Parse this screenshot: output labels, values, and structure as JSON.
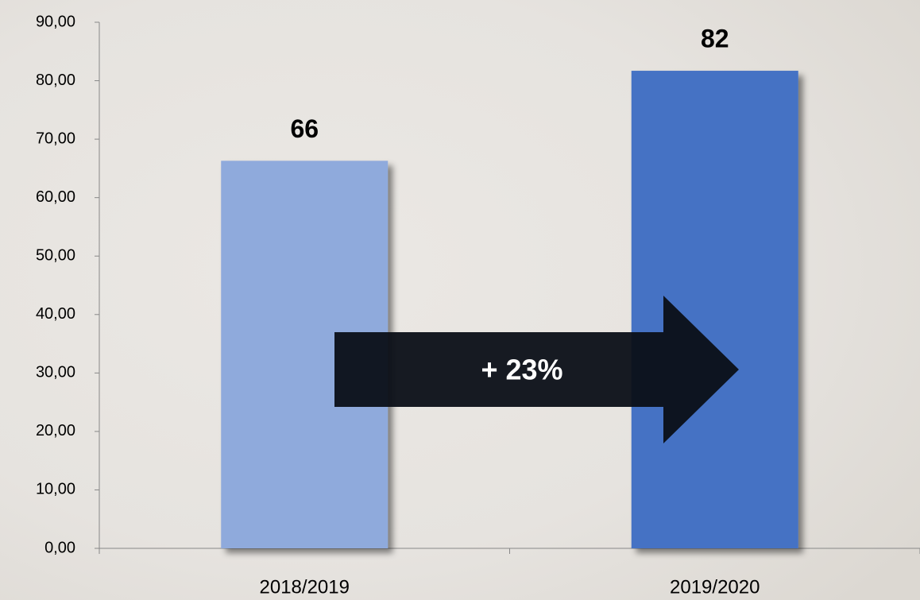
{
  "chart_data": {
    "type": "bar",
    "categories": [
      "2018/2019",
      "2019/2020"
    ],
    "values": [
      66.3,
      81.7
    ],
    "value_labels": [
      "66",
      "82"
    ],
    "colors": [
      "#8faadc",
      "#4472c4"
    ],
    "ylim": [
      0,
      90
    ],
    "yticks": [
      {
        "value": 0,
        "label": "0,00"
      },
      {
        "value": 10,
        "label": "10,00"
      },
      {
        "value": 20,
        "label": "20,00"
      },
      {
        "value": 30,
        "label": "30,00"
      },
      {
        "value": 40,
        "label": "40,00"
      },
      {
        "value": 50,
        "label": "50,00"
      },
      {
        "value": 60,
        "label": "60,00"
      },
      {
        "value": 70,
        "label": "70,00"
      },
      {
        "value": 80,
        "label": "80,00"
      },
      {
        "value": 90,
        "label": "90,00"
      }
    ],
    "annotation": "+ 23%"
  }
}
